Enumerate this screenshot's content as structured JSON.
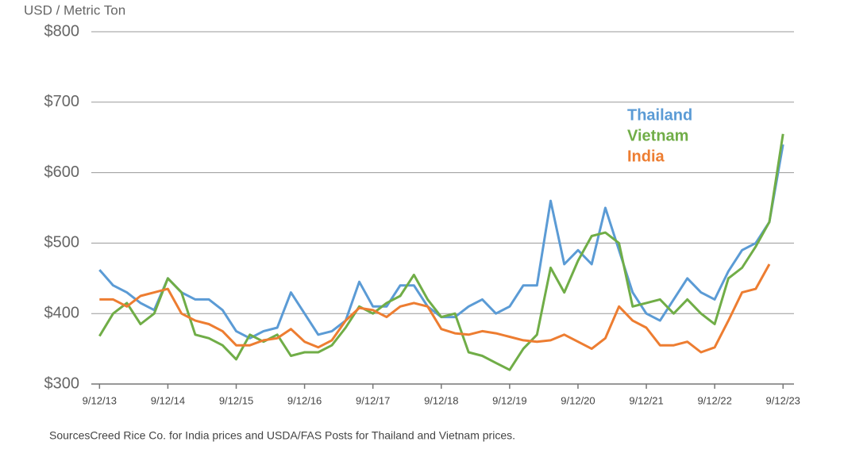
{
  "chart_data": {
    "type": "line",
    "y_label": "USD / Metric Ton",
    "note": "SourcesCreed Rice Co. for India prices and USDA/FAS Posts for Thailand and Vietnam prices.",
    "x": [
      2013.7,
      2013.9,
      2014.1,
      2014.3,
      2014.5,
      2014.7,
      2014.9,
      2015.1,
      2015.3,
      2015.5,
      2015.7,
      2015.9,
      2016.1,
      2016.3,
      2016.5,
      2016.7,
      2016.9,
      2017.1,
      2017.3,
      2017.5,
      2017.7,
      2017.9,
      2018.1,
      2018.3,
      2018.5,
      2018.7,
      2018.9,
      2019.1,
      2019.3,
      2019.5,
      2019.7,
      2019.9,
      2020.1,
      2020.3,
      2020.5,
      2020.7,
      2020.9,
      2021.1,
      2021.3,
      2021.5,
      2021.7,
      2021.9,
      2022.1,
      2022.3,
      2022.5,
      2022.7,
      2022.9,
      2023.1,
      2023.3,
      2023.5,
      2023.7
    ],
    "series": [
      {
        "name": "Thailand",
        "color": "#5b9bd5",
        "values": [
          462,
          440,
          430,
          415,
          405,
          450,
          430,
          420,
          420,
          405,
          375,
          365,
          375,
          380,
          430,
          400,
          370,
          375,
          390,
          445,
          410,
          410,
          440,
          440,
          410,
          395,
          395,
          410,
          420,
          400,
          410,
          440,
          440,
          560,
          470,
          490,
          470,
          550,
          490,
          430,
          400,
          390,
          420,
          450,
          430,
          420,
          460,
          490,
          500,
          530,
          640
        ]
      },
      {
        "name": "Vietnam",
        "color": "#70ad47",
        "values": [
          368,
          400,
          415,
          385,
          400,
          450,
          430,
          370,
          365,
          355,
          335,
          370,
          360,
          370,
          340,
          345,
          345,
          355,
          380,
          410,
          400,
          415,
          425,
          455,
          420,
          395,
          400,
          345,
          340,
          330,
          320,
          350,
          370,
          465,
          430,
          475,
          510,
          515,
          500,
          410,
          415,
          420,
          400,
          420,
          400,
          385,
          450,
          465,
          495,
          530,
          655
        ]
      },
      {
        "name": "India",
        "color": "#ed7d31",
        "values": [
          420,
          420,
          410,
          425,
          430,
          435,
          400,
          390,
          385,
          375,
          355,
          355,
          362,
          365,
          378,
          360,
          352,
          362,
          390,
          408,
          405,
          395,
          410,
          415,
          410,
          378,
          372,
          370,
          375,
          372,
          367,
          362,
          360,
          362,
          370,
          360,
          350,
          365,
          410,
          390,
          380,
          355,
          355,
          360,
          345,
          352,
          390,
          430,
          435,
          470,
          null
        ]
      }
    ],
    "xlim": [
      2013.58,
      2023.86
    ],
    "xticks": [
      {
        "value": 2013.7,
        "label": "9/12/13"
      },
      {
        "value": 2014.7,
        "label": "9/12/14"
      },
      {
        "value": 2015.7,
        "label": "9/12/15"
      },
      {
        "value": 2016.7,
        "label": "9/12/16"
      },
      {
        "value": 2017.7,
        "label": "9/12/17"
      },
      {
        "value": 2018.7,
        "label": "9/12/18"
      },
      {
        "value": 2019.7,
        "label": "9/12/19"
      },
      {
        "value": 2020.7,
        "label": "9/12/20"
      },
      {
        "value": 2021.7,
        "label": "9/12/21"
      },
      {
        "value": 2022.7,
        "label": "9/12/22"
      },
      {
        "value": 2023.7,
        "label": "9/12/23"
      }
    ],
    "ylim": [
      300,
      800
    ],
    "yticks": [
      {
        "value": 300,
        "label": "$300"
      },
      {
        "value": 400,
        "label": "$400"
      },
      {
        "value": 500,
        "label": "$500"
      },
      {
        "value": 600,
        "label": "$600"
      },
      {
        "value": 700,
        "label": "$700"
      },
      {
        "value": 800,
        "label": "$800"
      }
    ],
    "grid": true
  }
}
